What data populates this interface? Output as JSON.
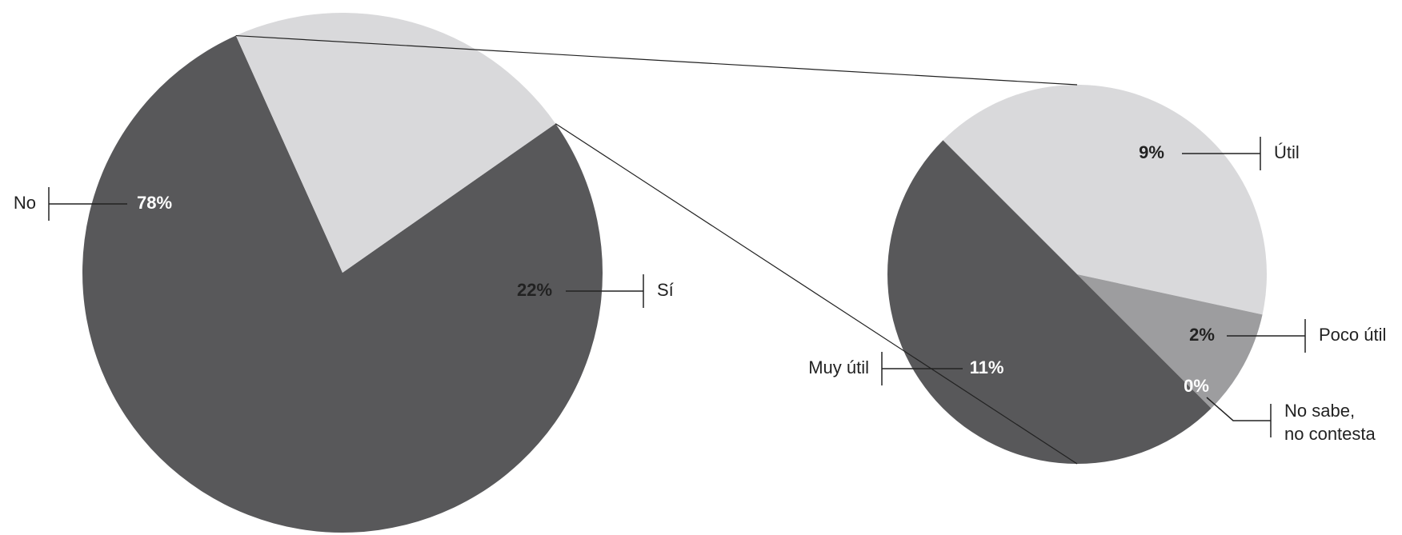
{
  "chart_data": [
    {
      "type": "pie",
      "categories": [
        "No",
        "Sí"
      ],
      "values": [
        78,
        22
      ],
      "value_labels": [
        "78%",
        "22%"
      ],
      "colors": [
        "#58585a",
        "#d9d9db"
      ]
    },
    {
      "type": "pie",
      "categories": [
        "Útil",
        "Poco útil",
        "No sabe, no contesta",
        "Muy útil"
      ],
      "values": [
        9,
        2,
        0,
        11
      ],
      "value_labels": [
        "9%",
        "2%",
        "0%",
        "11%"
      ],
      "colors": [
        "#d9d9db",
        "#9d9d9f",
        "#bcbcbe",
        "#58585a"
      ]
    }
  ]
}
